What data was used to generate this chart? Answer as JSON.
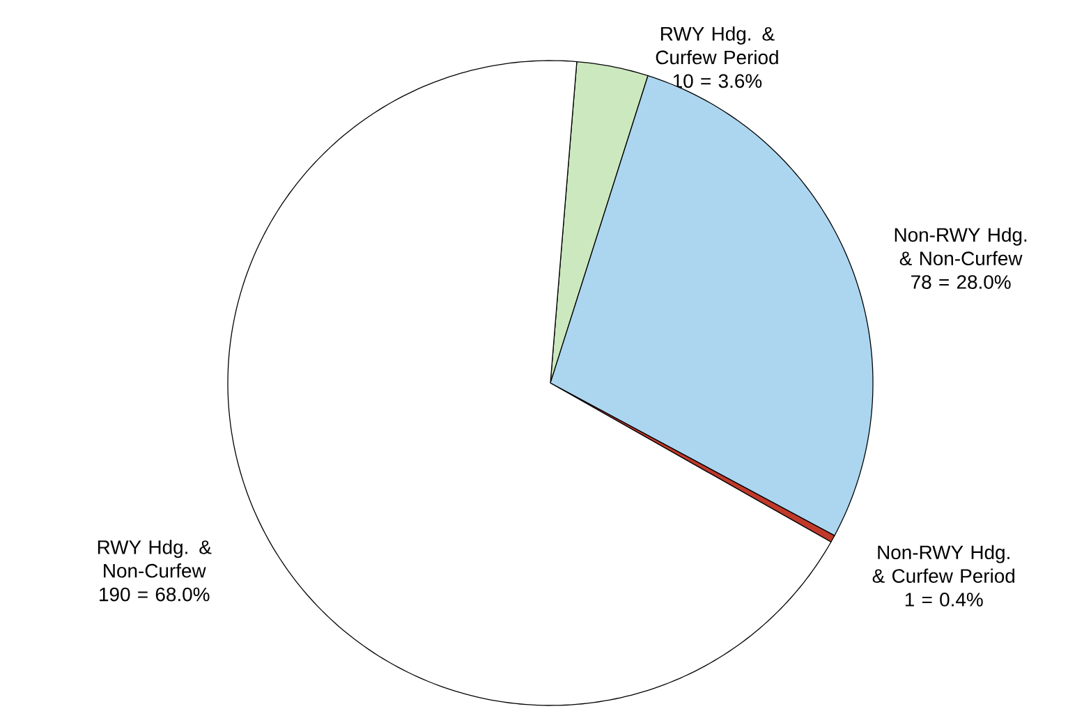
{
  "chart_data": {
    "type": "pie",
    "categories": [
      "RWY Hdg. & Curfew Period",
      "Non-RWY Hdg. & Non-Curfew",
      "Non-RWY Hdg. & Curfew Period",
      "RWY Hdg. & Non-Curfew"
    ],
    "values": [
      10,
      78,
      1,
      190
    ],
    "colors": [
      "#cce8bf",
      "#acd6ef",
      "#c0392b",
      "#ffffff"
    ],
    "value_labels": [
      "10 = 3.6%",
      "78 = 28.0%",
      "1 = 0.4%",
      "190 = 68.0%"
    ]
  }
}
